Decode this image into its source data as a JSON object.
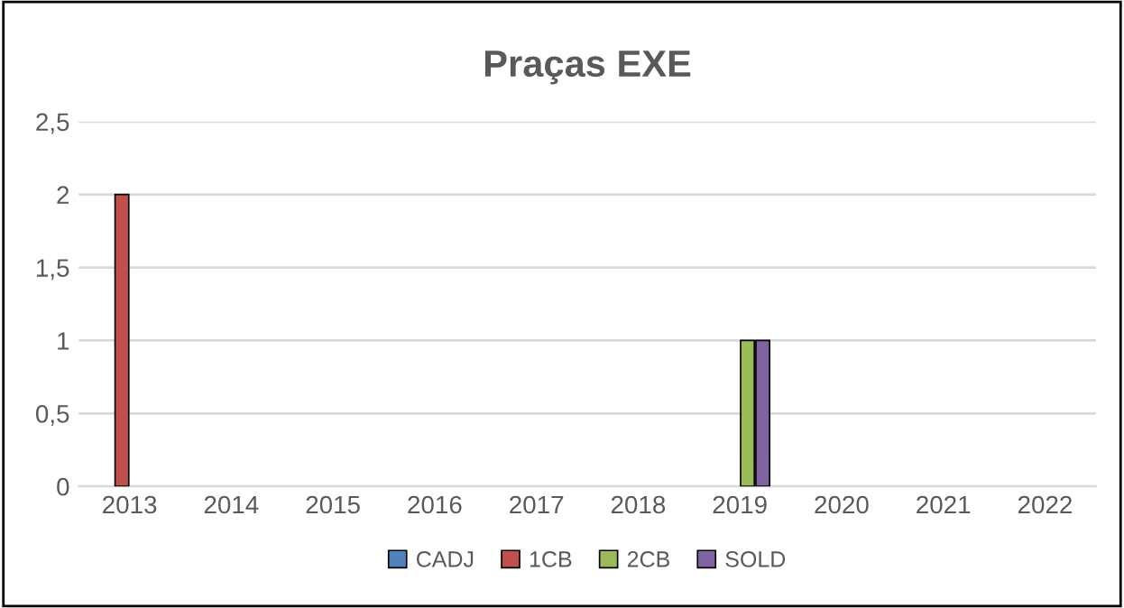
{
  "chart_data": {
    "type": "bar",
    "title": "Praças EXE",
    "categories": [
      "2013",
      "2014",
      "2015",
      "2016",
      "2017",
      "2018",
      "2019",
      "2020",
      "2021",
      "2022"
    ],
    "series": [
      {
        "name": "CADJ",
        "color": "#4f81bd",
        "values": [
          null,
          null,
          null,
          null,
          null,
          null,
          null,
          null,
          null,
          null
        ]
      },
      {
        "name": "1CB",
        "color": "#c0504d",
        "values": [
          2,
          null,
          null,
          null,
          null,
          null,
          null,
          null,
          null,
          null
        ]
      },
      {
        "name": "2CB",
        "color": "#9bbb59",
        "values": [
          null,
          null,
          null,
          null,
          null,
          null,
          1,
          null,
          null,
          null
        ]
      },
      {
        "name": "SOLD",
        "color": "#8064a2",
        "values": [
          null,
          null,
          null,
          null,
          null,
          null,
          1,
          null,
          null,
          null
        ]
      }
    ],
    "ylim": [
      0,
      2.5
    ],
    "yticks": [
      0,
      {
        "value": 0.5,
        "label": "0,5"
      },
      1,
      {
        "value": 1.5,
        "label": "1,5"
      },
      2,
      {
        "value": 2.5,
        "label": "2,5"
      }
    ],
    "grid": "y",
    "legend": "bottom"
  }
}
